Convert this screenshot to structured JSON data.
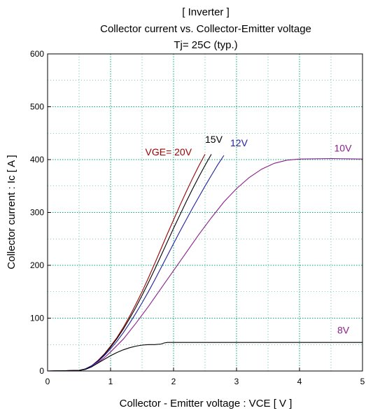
{
  "chart_data": {
    "type": "line",
    "title": "[ Inverter ]",
    "subtitle_lines": [
      "Collector current  vs.  Collector-Emitter voltage",
      "Tj= 25C  (typ.)"
    ],
    "xlabel": "Collector - Emitter voltage  :  VCE [ V ]",
    "ylabel": "Collector current  :  Ic  [ A ]",
    "xlim": [
      0,
      5
    ],
    "ylim": [
      0,
      600
    ],
    "x_ticks": [
      0,
      1,
      2,
      3,
      4,
      5
    ],
    "y_ticks": [
      0,
      100,
      200,
      300,
      400,
      500,
      600
    ],
    "x_tick_labels": [
      "0",
      "1",
      "2",
      "3",
      "4",
      "5"
    ],
    "y_tick_labels": [
      "0",
      "100",
      "200",
      "300",
      "400",
      "500",
      "600"
    ],
    "grid": true,
    "series": [
      {
        "name": "VGE= 20V",
        "color": "#990000",
        "points": [
          [
            0,
            0
          ],
          [
            0.5,
            1
          ],
          [
            0.6,
            4
          ],
          [
            0.7,
            10
          ],
          [
            0.8,
            20
          ],
          [
            0.9,
            32
          ],
          [
            1.0,
            47
          ],
          [
            1.1,
            63
          ],
          [
            1.2,
            82
          ],
          [
            1.3,
            103
          ],
          [
            1.4,
            126
          ],
          [
            1.5,
            150
          ],
          [
            1.6,
            176
          ],
          [
            1.7,
            203
          ],
          [
            1.8,
            231
          ],
          [
            1.9,
            259
          ],
          [
            2.0,
            286
          ],
          [
            2.1,
            313
          ],
          [
            2.2,
            339
          ],
          [
            2.3,
            364
          ],
          [
            2.4,
            388
          ],
          [
            2.5,
            410
          ]
        ]
      },
      {
        "name": "15V",
        "color": "#000000",
        "points": [
          [
            0,
            0
          ],
          [
            0.5,
            1
          ],
          [
            0.6,
            4
          ],
          [
            0.7,
            10
          ],
          [
            0.8,
            19
          ],
          [
            0.9,
            31
          ],
          [
            1.0,
            45
          ],
          [
            1.1,
            61
          ],
          [
            1.2,
            79
          ],
          [
            1.3,
            99
          ],
          [
            1.4,
            120
          ],
          [
            1.5,
            143
          ],
          [
            1.6,
            167
          ],
          [
            1.7,
            192
          ],
          [
            1.8,
            218
          ],
          [
            1.9,
            244
          ],
          [
            2.0,
            270
          ],
          [
            2.1,
            295
          ],
          [
            2.2,
            320
          ],
          [
            2.3,
            344
          ],
          [
            2.4,
            367
          ],
          [
            2.5,
            389
          ],
          [
            2.6,
            410
          ]
        ]
      },
      {
        "name": "12V",
        "color": "#1f1fa0",
        "points": [
          [
            0,
            0
          ],
          [
            0.5,
            1
          ],
          [
            0.6,
            4
          ],
          [
            0.7,
            10
          ],
          [
            0.8,
            18
          ],
          [
            0.9,
            29
          ],
          [
            1.0,
            42
          ],
          [
            1.1,
            56
          ],
          [
            1.2,
            72
          ],
          [
            1.3,
            90
          ],
          [
            1.4,
            109
          ],
          [
            1.5,
            129
          ],
          [
            1.6,
            150
          ],
          [
            1.7,
            172
          ],
          [
            1.8,
            195
          ],
          [
            1.9,
            218
          ],
          [
            2.0,
            241
          ],
          [
            2.1,
            264
          ],
          [
            2.2,
            286
          ],
          [
            2.3,
            308
          ],
          [
            2.4,
            329
          ],
          [
            2.5,
            350
          ],
          [
            2.6,
            370
          ],
          [
            2.7,
            390
          ],
          [
            2.8,
            408
          ]
        ]
      },
      {
        "name": "10V",
        "color": "#8b1f8b",
        "points": [
          [
            0,
            0
          ],
          [
            0.5,
            1
          ],
          [
            0.6,
            3
          ],
          [
            0.7,
            8
          ],
          [
            0.8,
            16
          ],
          [
            0.9,
            25
          ],
          [
            1.0,
            36
          ],
          [
            1.2,
            60
          ],
          [
            1.4,
            90
          ],
          [
            1.6,
            122
          ],
          [
            1.8,
            156
          ],
          [
            2.0,
            190
          ],
          [
            2.2,
            224
          ],
          [
            2.4,
            258
          ],
          [
            2.6,
            290
          ],
          [
            2.8,
            320
          ],
          [
            3.0,
            345
          ],
          [
            3.2,
            366
          ],
          [
            3.4,
            382
          ],
          [
            3.6,
            393
          ],
          [
            3.8,
            399
          ],
          [
            4.0,
            401
          ],
          [
            4.5,
            402
          ],
          [
            5.0,
            401
          ]
        ]
      },
      {
        "name": "8V",
        "color": "#000000",
        "points": [
          [
            0,
            0
          ],
          [
            0.5,
            1
          ],
          [
            0.6,
            3
          ],
          [
            0.7,
            8
          ],
          [
            0.8,
            15
          ],
          [
            0.9,
            22
          ],
          [
            1.0,
            29
          ],
          [
            1.1,
            35
          ],
          [
            1.2,
            40
          ],
          [
            1.3,
            44
          ],
          [
            1.4,
            47
          ],
          [
            1.5,
            49
          ],
          [
            1.6,
            50
          ],
          [
            1.7,
            50
          ],
          [
            1.8,
            51
          ],
          [
            1.85,
            53
          ],
          [
            1.9,
            54
          ],
          [
            2.5,
            54
          ],
          [
            3.0,
            54
          ],
          [
            5.0,
            54
          ]
        ]
      }
    ],
    "annotations": [
      {
        "text": "VGE= 20V",
        "color": "#990000",
        "x": 1.55,
        "y": 408
      },
      {
        "text": "15V",
        "color": "#000000",
        "x": 2.5,
        "y": 432
      },
      {
        "text": "12V",
        "color": "#1f1fa0",
        "x": 2.9,
        "y": 425
      },
      {
        "text": "10V",
        "color": "#8b1f8b",
        "x": 4.55,
        "y": 415
      },
      {
        "text": "8V",
        "color": "#8b1f8b",
        "x": 4.6,
        "y": 71
      }
    ]
  }
}
